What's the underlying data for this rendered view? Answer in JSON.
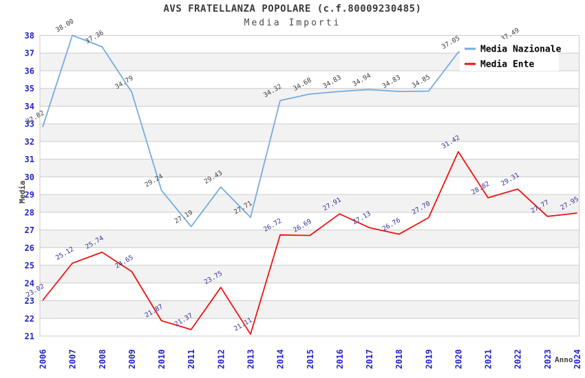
{
  "title": "AVS FRATELLANZA POPOLARE (c.f.80009230485)",
  "subtitle": "Media Importi",
  "chart_data": {
    "type": "line",
    "title": "AVS FRATELLANZA POPOLARE (c.f.80009230485)",
    "subtitle": "Media Importi",
    "xlabel": "Anno",
    "ylabel": "Media",
    "ylim": [
      21,
      38
    ],
    "ytick_step": 1,
    "grid": "horizontal",
    "x": [
      "2006",
      "2007",
      "2008",
      "2009",
      "2010",
      "2011",
      "2012",
      "2013",
      "2014",
      "2015",
      "2016",
      "2017",
      "2018",
      "2019",
      "2020",
      "2021",
      "2022",
      "2023",
      "2024"
    ],
    "series": [
      {
        "name": "Media Nazionale",
        "color": "#74ABE0",
        "label_color": "#3F3F3F",
        "values": [
          32.82,
          38.0,
          37.36,
          34.79,
          29.24,
          27.19,
          29.43,
          27.71,
          34.32,
          34.68,
          34.83,
          34.94,
          34.83,
          34.85,
          37.05,
          null,
          37.49,
          null,
          null
        ]
      },
      {
        "name": "Media Ente",
        "color": "#EE1111",
        "label_color": "#333399",
        "values": [
          23.02,
          25.12,
          25.74,
          24.65,
          21.87,
          21.37,
          23.75,
          21.11,
          26.72,
          26.69,
          27.91,
          27.13,
          26.76,
          27.7,
          31.42,
          28.82,
          29.31,
          27.77,
          27.95
        ]
      }
    ],
    "legend": {
      "position": "top-right",
      "entries": [
        "Media Nazionale",
        "Media Ente"
      ]
    },
    "colors": {
      "band_white": "#FFFFFF",
      "band_gray": "#F2F2F2",
      "gridline": "#CCCCCC",
      "plot_border": "#C9C9C9",
      "tick_label": "#2222CC",
      "axis_title": "#3F3F3F",
      "legend_text": "#000000",
      "legend_bg": "#FFFFFF"
    }
  }
}
